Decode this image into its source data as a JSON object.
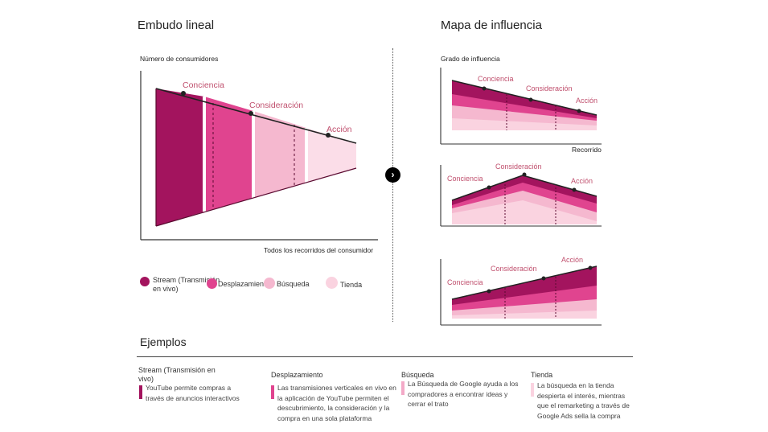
{
  "left": {
    "title": "Embudo lineal",
    "y_label": "Número de consumidores",
    "x_label": "Todos los recorridos del consumidor",
    "stages": [
      "Conciencia",
      "Consideración",
      "Acción"
    ]
  },
  "right": {
    "title": "Mapa de influencia",
    "y_label": "Grado de influencia",
    "x_label": "Recorrido",
    "chart1_stages": [
      "Conciencia",
      "Consideración",
      "Acción"
    ],
    "chart2_stages": [
      "Conciencia",
      "Consideración",
      "Acción"
    ],
    "chart3_stages": [
      "Conciencia",
      "Consideración",
      "Acción"
    ]
  },
  "legend": [
    {
      "label": "Stream (Transmisión en vivo)",
      "color": "#a3145e"
    },
    {
      "label": "Desplazamiento",
      "color": "#e0448f"
    },
    {
      "label": "Búsqueda",
      "color": "#f3a9c7"
    },
    {
      "label": "Tienda",
      "color": "#fad3e0"
    }
  ],
  "examples": {
    "title": "Ejemplos",
    "items": [
      {
        "title": "Stream (Transmisión en vivo)",
        "text": "YouTube permite compras a través de anuncios interactivos",
        "color": "#a3145e"
      },
      {
        "title": "Desplazamiento",
        "text": "Las transmisiones verticales en vivo en la aplicación de YouTube permiten el descubrimiento, la consideración y la compra en una sola plataforma",
        "color": "#e0448f"
      },
      {
        "title": "Búsqueda",
        "text": "La Búsqueda de Google ayuda a los compradores a encontrar ideas y cerrar el trato",
        "color": "#f3a9c7"
      },
      {
        "title": "Tienda",
        "text": "La búsqueda en la tienda despierta el interés, mientras que el remarketing a través de Google Ads sella la compra",
        "color": "#fad3e0"
      }
    ]
  },
  "arrow_icon": "chevron-right-icon"
}
